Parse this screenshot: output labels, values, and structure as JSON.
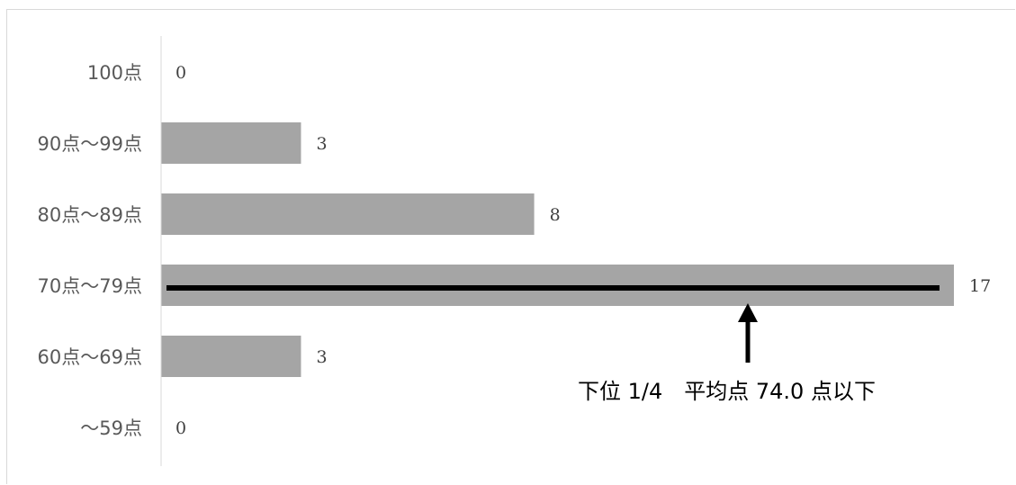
{
  "chart_data": {
    "type": "bar",
    "orientation": "horizontal",
    "categories": [
      "100点",
      "90点～99点",
      "80点～89点",
      "70点～79点",
      "60点～69点",
      "～59点"
    ],
    "values": [
      0,
      3,
      8,
      17,
      3,
      0
    ],
    "xlim": [
      0,
      17
    ],
    "bar_color": "#a5a5a5",
    "grid": false,
    "annotation": {
      "text": "下位 1/4　平均点 74.0 点以下",
      "category": "70点～79点",
      "line_color": "#000000"
    }
  }
}
